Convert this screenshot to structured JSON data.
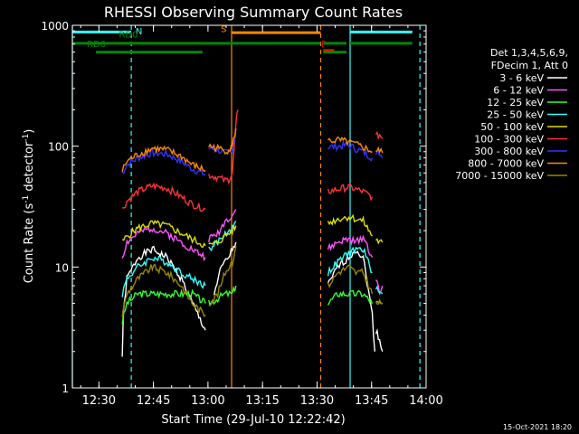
{
  "chart_data": {
    "type": "line",
    "title": "RHESSI Observing Summary Count Rates",
    "xlabel": "Start Time (29-Jul-10 12:22:42)",
    "ylabel_main": "Count Rate (s",
    "ylabel_sup1": "-1",
    "ylabel_mid": " detector",
    "ylabel_sup2": "-1",
    "ylabel_end": ")",
    "y_scale": "log",
    "ylim": [
      1,
      1000
    ],
    "xlim_minutes": [
      0,
      97.3
    ],
    "x_ticks": [
      {
        "min": 7.3,
        "label": "12:30"
      },
      {
        "min": 22.3,
        "label": "12:45"
      },
      {
        "min": 37.3,
        "label": "13:00"
      },
      {
        "min": 52.3,
        "label": "13:15"
      },
      {
        "min": 67.3,
        "label": "13:30"
      },
      {
        "min": 82.3,
        "label": "13:45"
      },
      {
        "min": 97.3,
        "label": "14:00"
      }
    ],
    "y_ticks": [
      {
        "value": 1,
        "label": "1"
      },
      {
        "value": 10,
        "label": "10"
      },
      {
        "value": 100,
        "label": "100"
      },
      {
        "value": 1000,
        "label": "1000"
      }
    ],
    "legend_header": [
      "Det 1,3,4,5,6,9,",
      "FDecim 1, Att 0"
    ],
    "series": [
      {
        "name": "3 - 6 keV",
        "color": "#ffffff",
        "seg1": [
          [
            13.7,
            1.8
          ],
          [
            14,
            4
          ],
          [
            15,
            8
          ],
          [
            18,
            12
          ],
          [
            22,
            14
          ],
          [
            26,
            12
          ],
          [
            30,
            8
          ],
          [
            33,
            5
          ],
          [
            36.6,
            3
          ]
        ],
        "seg2": [
          [
            39,
            6
          ],
          [
            41,
            10
          ],
          [
            43,
            12
          ],
          [
            44,
            14
          ],
          [
            45,
            16
          ]
        ],
        "seg3": [
          [
            70.3,
            7
          ],
          [
            73,
            10
          ],
          [
            76,
            12
          ],
          [
            78,
            14
          ],
          [
            80,
            12
          ],
          [
            82.5,
            4
          ],
          [
            83.2,
            2
          ]
        ],
        "seg4": [
          [
            83.5,
            3
          ],
          [
            84.5,
            2.5
          ],
          [
            85.3,
            2
          ]
        ]
      },
      {
        "name": "6 - 12 keV",
        "color": "#ff55ff",
        "seg1": [
          [
            13.7,
            12
          ],
          [
            15,
            16
          ],
          [
            18,
            19
          ],
          [
            22,
            21
          ],
          [
            26,
            19
          ],
          [
            30,
            16
          ],
          [
            33,
            14
          ],
          [
            36.6,
            12
          ]
        ],
        "seg2": [
          [
            37.5,
            17
          ],
          [
            40,
            19
          ],
          [
            42,
            24
          ],
          [
            44,
            27
          ],
          [
            45,
            30
          ]
        ],
        "seg3": [
          [
            70.3,
            14
          ],
          [
            73,
            16
          ],
          [
            76,
            17
          ],
          [
            78,
            16
          ],
          [
            80,
            18
          ],
          [
            82.5,
            12
          ]
        ],
        "seg4": [
          [
            83.5,
            8
          ],
          [
            84.5,
            6
          ],
          [
            85.3,
            7
          ]
        ]
      },
      {
        "name": "12 - 25 keV",
        "color": "#33ff33",
        "seg1": [
          [
            13.7,
            3.5
          ],
          [
            15,
            5
          ],
          [
            18,
            6
          ],
          [
            22,
            6
          ],
          [
            26,
            6
          ],
          [
            30,
            6
          ],
          [
            33,
            6
          ],
          [
            36.6,
            5
          ]
        ],
        "seg2": [
          [
            37.5,
            5
          ],
          [
            40,
            5.5
          ],
          [
            42,
            6
          ],
          [
            44,
            6
          ],
          [
            45,
            7
          ]
        ],
        "seg3": [
          [
            70.3,
            5
          ],
          [
            73,
            6
          ],
          [
            76,
            6
          ],
          [
            78,
            6
          ],
          [
            80,
            6
          ],
          [
            82.5,
            5
          ]
        ],
        "seg4": [
          [
            83.5,
            5
          ],
          [
            84.5,
            5
          ],
          [
            85.3,
            5
          ]
        ]
      },
      {
        "name": "25 - 50 keV",
        "color": "#33ffff",
        "seg1": [
          [
            13.7,
            6
          ],
          [
            15,
            8
          ],
          [
            18,
            10
          ],
          [
            22,
            12
          ],
          [
            26,
            11
          ],
          [
            30,
            9
          ],
          [
            33,
            8
          ],
          [
            36.6,
            7
          ]
        ],
        "seg2": [
          [
            37.5,
            14
          ],
          [
            40,
            16
          ],
          [
            42,
            19
          ],
          [
            44,
            21
          ],
          [
            45,
            24
          ]
        ],
        "seg3": [
          [
            70.3,
            9
          ],
          [
            73,
            11
          ],
          [
            76,
            13
          ],
          [
            78,
            14
          ],
          [
            80,
            14
          ],
          [
            82.5,
            9
          ]
        ],
        "seg4": [
          [
            83.5,
            7
          ],
          [
            84.5,
            6
          ],
          [
            85.3,
            6
          ]
        ]
      },
      {
        "name": "50 - 100 keV",
        "color": "#dddd00",
        "seg1": [
          [
            13.7,
            16
          ],
          [
            15,
            18
          ],
          [
            18,
            21
          ],
          [
            22,
            23
          ],
          [
            26,
            22
          ],
          [
            30,
            19
          ],
          [
            33,
            17
          ],
          [
            36.6,
            15
          ]
        ],
        "seg2": [
          [
            37.5,
            15
          ],
          [
            40,
            16
          ],
          [
            42,
            18
          ],
          [
            44,
            20
          ],
          [
            45,
            22
          ]
        ],
        "seg3": [
          [
            70.3,
            23
          ],
          [
            73,
            25
          ],
          [
            76,
            26
          ],
          [
            78,
            25
          ],
          [
            80,
            24
          ],
          [
            82.5,
            18
          ]
        ],
        "seg4": [
          [
            83.5,
            17
          ],
          [
            84.5,
            16
          ],
          [
            85.3,
            16
          ]
        ]
      },
      {
        "name": "100 - 300 keV",
        "color": "#ff3333",
        "seg1": [
          [
            13.7,
            30
          ],
          [
            15,
            35
          ],
          [
            18,
            42
          ],
          [
            22,
            47
          ],
          [
            26,
            45
          ],
          [
            30,
            38
          ],
          [
            33,
            33
          ],
          [
            36.6,
            30
          ]
        ],
        "seg2": [
          [
            37.5,
            58
          ],
          [
            40,
            55
          ],
          [
            42,
            52
          ],
          [
            43,
            53
          ],
          [
            44,
            60
          ],
          [
            45,
            150
          ],
          [
            45.5,
            200
          ]
        ],
        "seg3": [
          [
            70.3,
            42
          ],
          [
            73,
            44
          ],
          [
            76,
            46
          ],
          [
            78,
            44
          ],
          [
            80,
            42
          ],
          [
            82.5,
            38
          ]
        ],
        "seg4": [
          [
            83.5,
            120
          ],
          [
            84.5,
            125
          ],
          [
            85.3,
            115
          ]
        ]
      },
      {
        "name": "300 - 800 keV",
        "color": "#3333ff",
        "seg1": [
          [
            13.7,
            60
          ],
          [
            15,
            70
          ],
          [
            18,
            80
          ],
          [
            22,
            88
          ],
          [
            26,
            86
          ],
          [
            30,
            75
          ],
          [
            33,
            65
          ],
          [
            36.6,
            58
          ]
        ],
        "seg2": [
          [
            37.5,
            97
          ],
          [
            40,
            93
          ],
          [
            42,
            88
          ],
          [
            43,
            88
          ],
          [
            44,
            95
          ],
          [
            45,
            130
          ]
        ],
        "seg3": [
          [
            70.3,
            98
          ],
          [
            73,
            100
          ],
          [
            76,
            102
          ],
          [
            78,
            95
          ],
          [
            80,
            90
          ],
          [
            82.5,
            80
          ]
        ],
        "seg4": [
          [
            83.5,
            85
          ],
          [
            84.5,
            88
          ],
          [
            85.3,
            80
          ]
        ]
      },
      {
        "name": "800 - 7000 keV",
        "color": "#ff8800",
        "seg1": [
          [
            13.7,
            62
          ],
          [
            15,
            75
          ],
          [
            18,
            85
          ],
          [
            22,
            96
          ],
          [
            26,
            93
          ],
          [
            30,
            82
          ],
          [
            33,
            70
          ],
          [
            36.6,
            63
          ]
        ],
        "seg2": [
          [
            37.5,
            100
          ],
          [
            40,
            96
          ],
          [
            42,
            92
          ],
          [
            43,
            93
          ],
          [
            44,
            100
          ],
          [
            45,
            140
          ]
        ],
        "seg3": [
          [
            70.3,
            110
          ],
          [
            73,
            112
          ],
          [
            76,
            108
          ],
          [
            78,
            103
          ],
          [
            80,
            98
          ],
          [
            82.5,
            90
          ]
        ],
        "seg4": [
          [
            83.5,
            90
          ],
          [
            84.5,
            92
          ],
          [
            85.3,
            88
          ]
        ]
      },
      {
        "name": "7000 - 15000 keV",
        "color": "#998800",
        "seg1": [
          [
            13.7,
            4
          ],
          [
            15,
            6
          ],
          [
            18,
            8
          ],
          [
            22,
            10
          ],
          [
            26,
            9
          ],
          [
            30,
            7
          ],
          [
            33,
            5
          ],
          [
            36.6,
            4
          ]
        ],
        "seg2": [
          [
            37.5,
            5
          ],
          [
            40,
            6
          ],
          [
            42,
            9
          ],
          [
            44,
            11
          ],
          [
            45,
            15
          ]
        ],
        "seg3": [
          [
            70.3,
            7
          ],
          [
            73,
            9
          ],
          [
            76,
            10
          ],
          [
            78,
            9
          ],
          [
            80,
            9
          ],
          [
            82.5,
            6
          ]
        ],
        "seg4": [
          [
            83.5,
            5
          ],
          [
            84.5,
            5
          ],
          [
            85.3,
            5
          ]
        ]
      }
    ],
    "vlines": [
      {
        "min": 0,
        "color": "#33ffff",
        "style": "solid"
      },
      {
        "min": 16.2,
        "color": "#33ffff",
        "style": "dashed"
      },
      {
        "min": 43.8,
        "color": "#ff8800",
        "style": "solid"
      },
      {
        "min": 68.3,
        "color": "#ff8800",
        "style": "dashed"
      },
      {
        "min": 76.4,
        "color": "#33ffff",
        "style": "solid"
      },
      {
        "min": 95.6,
        "color": "#33ffff",
        "style": "dashed"
      }
    ],
    "state_bars": [
      {
        "label": "N",
        "color": "#33ffff",
        "level": 880,
        "segments": [
          [
            0,
            16.2
          ],
          [
            76.4,
            93.5
          ]
        ]
      },
      {
        "label": "S",
        "color": "#ff8800",
        "level": 870,
        "segments": [
          [
            43.8,
            68.3
          ]
        ]
      },
      {
        "label": "F",
        "color": "#ff0000",
        "level": 620,
        "segments": [
          [
            69,
            72
          ]
        ]
      },
      {
        "label": "RD0",
        "color": "#008800",
        "level": 710,
        "segments": [
          [
            0,
            35.8
          ],
          [
            35.8,
            68.3
          ],
          [
            69,
            75.4
          ],
          [
            76.4,
            93.5
          ]
        ]
      },
      {
        "label": "RD6",
        "color": "#008800",
        "level": 600,
        "segments": [
          [
            6.5,
            35.8
          ],
          [
            69,
            75.4
          ]
        ]
      }
    ],
    "bar_labels": [
      {
        "text": "N",
        "color": "#33ffff",
        "min": 17.4,
        "value": 840
      },
      {
        "text": "S",
        "color": "#ff8800",
        "min": 40.8,
        "value": 880
      },
      {
        "text": "F",
        "color": "#ff0000",
        "min": 68.4,
        "value": 660
      },
      {
        "text": "RD0",
        "color": "#008800",
        "min": 12.8,
        "value": 790
      },
      {
        "text": "RD6",
        "color": "#008800",
        "min": 4,
        "value": 660
      }
    ],
    "date_stamp": "15-Oct-2021 18:20"
  }
}
